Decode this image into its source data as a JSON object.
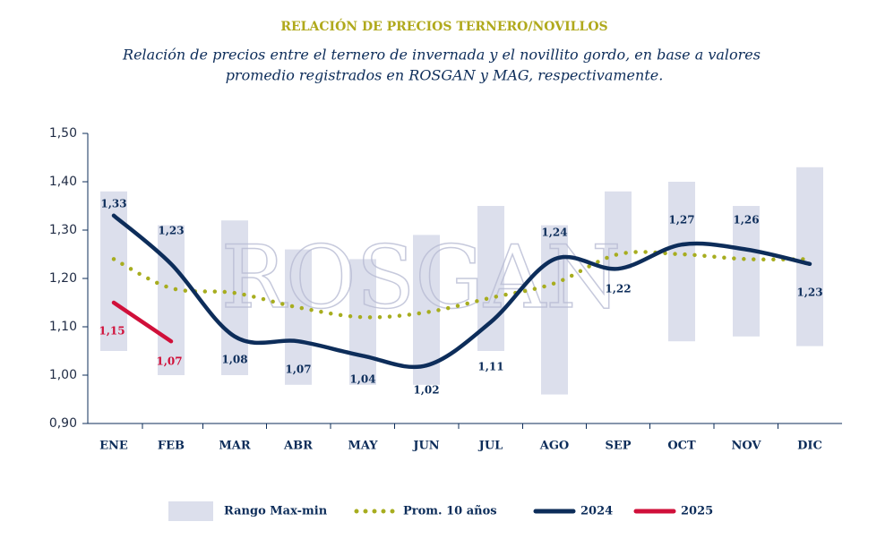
{
  "chart_data": {
    "type": "line",
    "title": "RELACIÓN DE PRECIOS TERNERO/NOVILLOS",
    "subtitle": [
      "Relación de precios entre el ternero de invernada y el novillito gordo, en base a valores",
      "promedio registrados en ROSGAN y MAG, respectivamente."
    ],
    "watermark": "ROSGAN",
    "categories": [
      "ENE",
      "FEB",
      "MAR",
      "ABR",
      "MAY",
      "JUN",
      "JUL",
      "AGO",
      "SEP",
      "OCT",
      "NOV",
      "DIC"
    ],
    "ylim": [
      0.9,
      1.5
    ],
    "yticks": [
      {
        "value": 0.9,
        "label": "0,90"
      },
      {
        "value": 1.0,
        "label": "1,00"
      },
      {
        "value": 1.1,
        "label": "1,10"
      },
      {
        "value": 1.2,
        "label": "1,20"
      },
      {
        "value": 1.3,
        "label": "1,30"
      },
      {
        "value": 1.4,
        "label": "1,40"
      },
      {
        "value": 1.5,
        "label": "1,50"
      }
    ],
    "range": {
      "name": "Rango Max-min",
      "color": "#dcdfec",
      "max": [
        1.38,
        1.31,
        1.32,
        1.26,
        1.24,
        1.29,
        1.35,
        1.31,
        1.38,
        1.4,
        1.35,
        1.43
      ],
      "min": [
        1.05,
        1.0,
        1.0,
        0.98,
        0.98,
        0.98,
        1.05,
        0.96,
        1.22,
        1.07,
        1.08,
        1.06
      ]
    },
    "series": [
      {
        "name": "Prom. 10 años",
        "color": "#a7ad1f",
        "style": "dotted",
        "values": [
          1.24,
          1.18,
          1.17,
          1.14,
          1.12,
          1.13,
          1.16,
          1.19,
          1.25,
          1.25,
          1.24,
          1.24
        ]
      },
      {
        "name": "2024",
        "color": "#0d2d5a",
        "style": "solid",
        "values": [
          1.33,
          1.23,
          1.08,
          1.07,
          1.04,
          1.02,
          1.11,
          1.24,
          1.22,
          1.27,
          1.26,
          1.23
        ],
        "value_labels": [
          "1,33",
          "1,23",
          "1,08",
          "1,07",
          "1,04",
          "1,02",
          "1,11",
          "1,24",
          "1,22",
          "1,27",
          "1,26",
          "1,23"
        ]
      },
      {
        "name": "2025",
        "color": "#d0103a",
        "style": "solid",
        "values": [
          1.15,
          1.07,
          null,
          null,
          null,
          null,
          null,
          null,
          null,
          null,
          null,
          null
        ],
        "value_labels": [
          "1,15",
          "1,07",
          null,
          null,
          null,
          null,
          null,
          null,
          null,
          null,
          null,
          null
        ]
      }
    ]
  }
}
